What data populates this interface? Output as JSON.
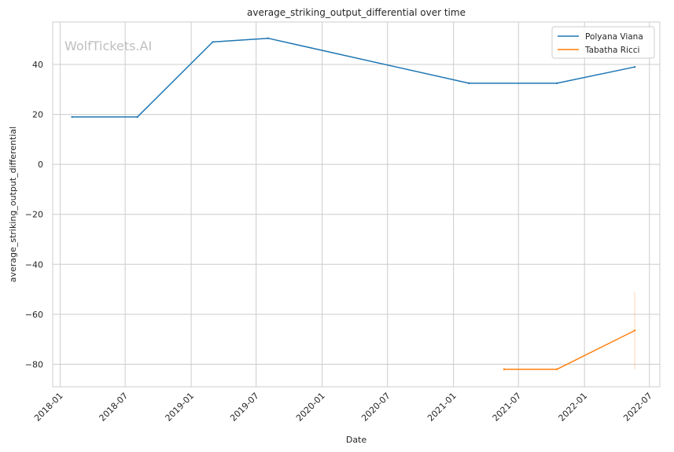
{
  "chart_data": {
    "type": "line",
    "title": "average_striking_output_differential over time",
    "xlabel": "Date",
    "ylabel": "average_striking_output_differential",
    "watermark": "WolfTickets.AI",
    "x_ticks": [
      "2018-01",
      "2018-07",
      "2019-01",
      "2019-07",
      "2020-01",
      "2020-07",
      "2021-01",
      "2021-07",
      "2022-01",
      "2022-07"
    ],
    "y_ticks": [
      40,
      20,
      0,
      -20,
      -40,
      -60,
      -80
    ],
    "y_tick_labels": [
      "40",
      "20",
      "0",
      "−20",
      "−40",
      "−60",
      "−80"
    ],
    "xlim": [
      "2017-12-11",
      "2022-07-30"
    ],
    "ylim": [
      -89,
      57
    ],
    "grid": true,
    "legend_position": "top-right",
    "series": [
      {
        "name": "Polyana Viana",
        "color": "#1f77b4",
        "points": [
          {
            "x": "2018-02-03",
            "y": 19
          },
          {
            "x": "2018-08-04",
            "y": 19
          },
          {
            "x": "2019-03-02",
            "y": 49
          },
          {
            "x": "2019-08-03",
            "y": 50.5
          },
          {
            "x": "2021-02-13",
            "y": 32.5
          },
          {
            "x": "2021-10-16",
            "y": 32.5
          },
          {
            "x": "2022-05-21",
            "y": 39
          }
        ]
      },
      {
        "name": "Tabatha Ricci",
        "color": "#ff7f0e",
        "points": [
          {
            "x": "2021-05-22",
            "y": -82
          },
          {
            "x": "2021-10-16",
            "y": -82
          },
          {
            "x": "2022-05-21",
            "y": -66.5
          }
        ],
        "error_band": {
          "x": "2022-05-21",
          "low": -82,
          "high": -51
        }
      }
    ]
  }
}
